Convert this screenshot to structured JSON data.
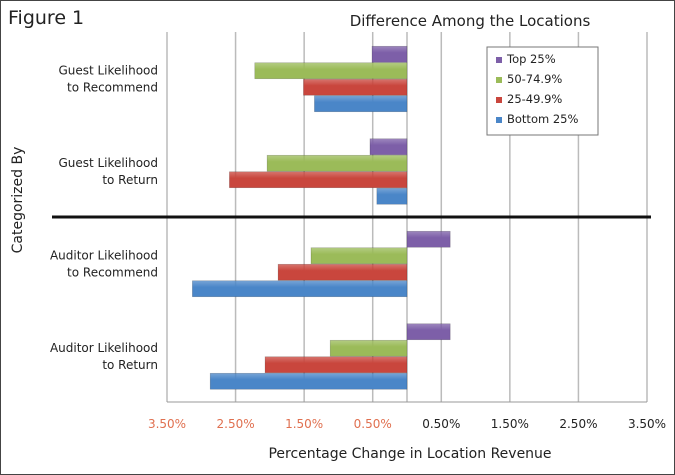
{
  "figure_label": "Figure 1",
  "chart_data": {
    "type": "bar",
    "orientation": "horizontal",
    "title": "Difference Among the Locations",
    "xlabel": "Percentage Change in Location Revenue",
    "ylabel": "Categorized By",
    "xlim": [
      -3.5,
      3.5
    ],
    "xticks": [
      -3.5,
      -2.5,
      -1.5,
      -0.5,
      0.5,
      1.5,
      2.5,
      3.5
    ],
    "xtick_labels": [
      "3.50%",
      "2.50%",
      "1.50%",
      "0.50%",
      "0.50%",
      "1.50%",
      "2.50%",
      "3.50%"
    ],
    "negative_tick_color": "#e07050",
    "grid": true,
    "legend_position": "top-right",
    "categories": [
      [
        "Guest Likelihood",
        "to Recommend"
      ],
      [
        "Guest Likelihood",
        "to Return"
      ],
      [
        "Auditor Likelihood",
        "to Recommend"
      ],
      [
        "Auditor Likelihood",
        "to Return"
      ]
    ],
    "series": [
      {
        "name": "Top 25%",
        "color": "#7d5fa8",
        "values": [
          -0.51,
          -0.54,
          0.63,
          0.63
        ]
      },
      {
        "name": "50-74.9%",
        "color": "#9bbb59",
        "values": [
          -2.22,
          -2.04,
          -1.4,
          -1.12
        ]
      },
      {
        "name": "25-49.9%",
        "color": "#c9463d",
        "values": [
          -1.51,
          -2.59,
          -1.88,
          -2.07
        ]
      },
      {
        "name": "Bottom 25%",
        "color": "#4a86c8",
        "values": [
          -1.35,
          -0.44,
          -3.13,
          -2.87
        ]
      }
    ],
    "separator_after_category": 1
  }
}
